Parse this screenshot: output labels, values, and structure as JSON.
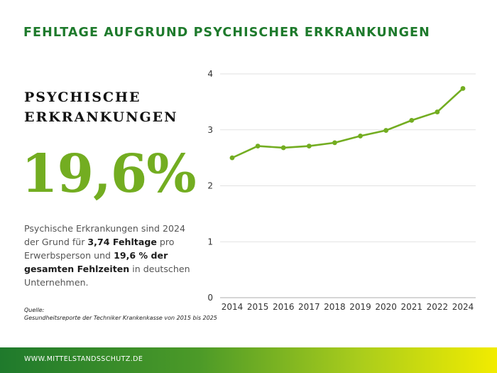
{
  "header": {
    "title": "FEHLTAGE AUFGRUND PSYCHISCHER ERKRANKUNGEN"
  },
  "left_panel": {
    "section_title_line1": "PSYCHISCHE",
    "section_title_line2": "ERKRANKUNGEN",
    "big_value": "19,6%",
    "description": {
      "part1": "Psychische Erkrankungen sind 2024 der Grund für ",
      "bold1": "3,74 Fehltage",
      "part2": " pro Erwerbsperson und ",
      "bold2": "19,6 % der gesamten Fehlzeiten",
      "part3": " in deutschen Unternehmen."
    },
    "source_label": "Quelle:",
    "source_text": "Gesundheitsreporte der Techniker Krankenkasse von 2015 bis 2025"
  },
  "footer": {
    "text": "WWW.MITTELSTANDSSCHUTZ.DE"
  },
  "colors": {
    "accent": "#73ad21",
    "title_green": "#1e7a2c",
    "grid": "#d9d9d9"
  },
  "chart_data": {
    "type": "line",
    "title": "",
    "xlabel": "",
    "ylabel": "",
    "x": [
      "2014",
      "2015",
      "2016",
      "2017",
      "2018",
      "2019",
      "2020",
      "2021",
      "2022",
      "2024"
    ],
    "series": [
      {
        "values": [
          2.5,
          2.71,
          2.68,
          2.71,
          2.77,
          2.89,
          2.99,
          3.17,
          3.32,
          3.74
        ]
      }
    ],
    "ylim": [
      0,
      4
    ],
    "yticks": [
      "0",
      "1",
      "2",
      "3",
      "4"
    ],
    "grid": true,
    "legend": "none",
    "marker": "circle"
  }
}
